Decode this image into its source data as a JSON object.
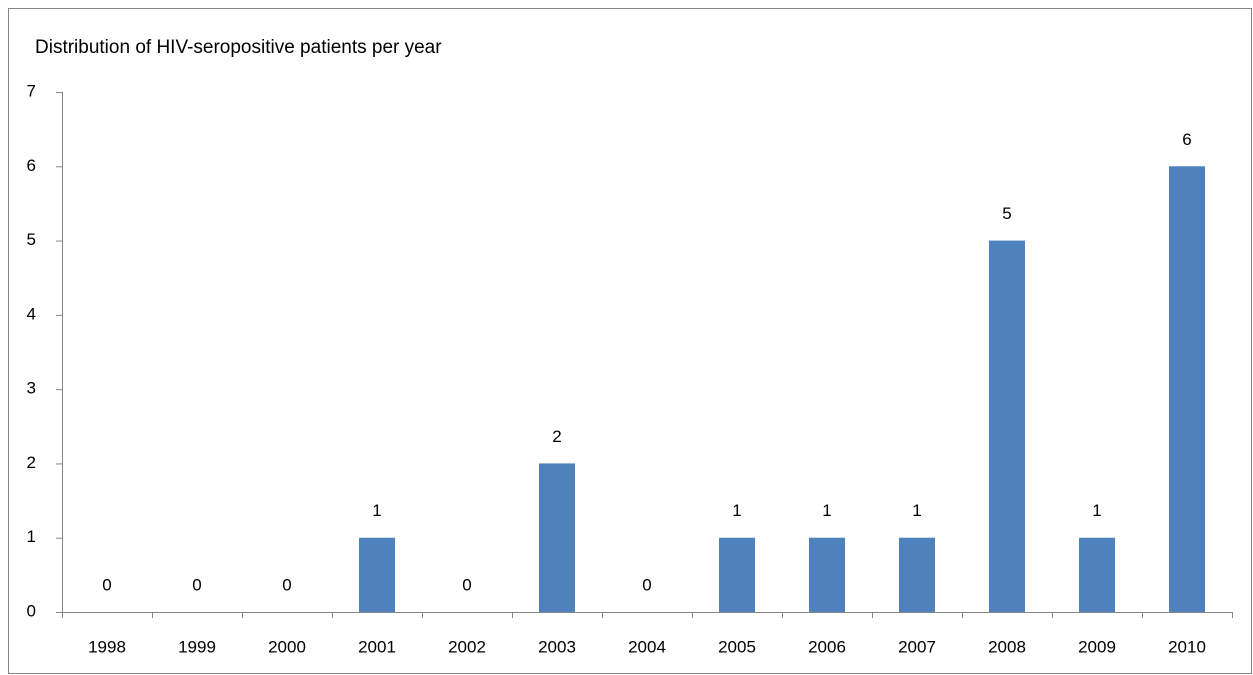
{
  "chart_data": {
    "type": "bar",
    "title": "Distribution of HIV-seropositive patients per year",
    "categories": [
      "1998",
      "1999",
      "2000",
      "2001",
      "2002",
      "2003",
      "2004",
      "2005",
      "2006",
      "2007",
      "2008",
      "2009",
      "2010"
    ],
    "values": [
      0,
      0,
      0,
      1,
      0,
      2,
      0,
      1,
      1,
      1,
      5,
      1,
      6
    ],
    "color": "#4f81bd",
    "ylim": [
      0,
      7
    ],
    "yticks": [
      0,
      1,
      2,
      3,
      4,
      5,
      6,
      7
    ],
    "grid": false,
    "data_labels": true
  }
}
